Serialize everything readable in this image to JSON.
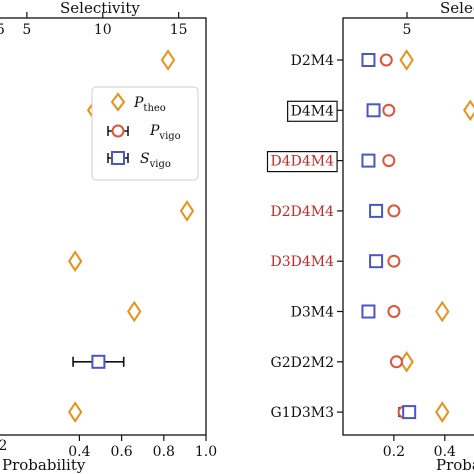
{
  "chart_data": [
    {
      "type": "scatter",
      "xlabel": "Probability",
      "x2label": "Selectivity",
      "x_ticks": [
        "0.4",
        "0.6",
        "0.8",
        "1.0"
      ],
      "x2_ticks": [
        "5",
        "10",
        "15"
      ],
      "xlim": [
        0.0,
        1.0
      ],
      "x2lim": [
        2.9,
        16.8
      ],
      "categories": [
        "",
        "",
        "",
        "",
        "",
        "",
        "",
        ""
      ],
      "legend": [
        {
          "label": "P",
          "sub": "theo"
        },
        {
          "label": "P",
          "sub": "vigo"
        },
        {
          "label": "S",
          "sub": "vigo"
        }
      ],
      "series": [
        {
          "name": "P_theo",
          "marker": "diamond",
          "color": "#e8911a",
          "x": [
            0.82,
            0.47,
            null,
            0.91,
            0.38,
            0.66,
            null,
            0.38
          ]
        },
        {
          "name": "S_vigo",
          "marker": "square",
          "color": "#4a55c8",
          "x": [
            null,
            null,
            null,
            null,
            null,
            null,
            0.49,
            null
          ],
          "xerr": [
            null,
            null,
            null,
            null,
            null,
            null,
            0.12,
            null
          ]
        }
      ]
    },
    {
      "type": "scatter",
      "xlabel": "Probability",
      "x2label": "Selectivity",
      "x_ticks": [
        "0.2",
        "0.4"
      ],
      "x2_ticks": [
        "5"
      ],
      "xlim": [
        0.0,
        0.55
      ],
      "categories": [
        "D2M4",
        "D4M4",
        "D4D4M4",
        "D2D4M4",
        "D3D4M4",
        "D3M4",
        "G2D2M2",
        "G1D3M3"
      ],
      "category_colors": [
        "#111111",
        "#111111",
        "#c62828",
        "#c62828",
        "#c62828",
        "#111111",
        "#111111",
        "#111111"
      ],
      "boxed_categories": [
        "D4M4",
        "D4D4M4"
      ],
      "series": [
        {
          "name": "P_theo",
          "marker": "diamond",
          "color": "#e8911a",
          "x": [
            0.25,
            0.5,
            null,
            null,
            null,
            0.39,
            0.25,
            0.39
          ]
        },
        {
          "name": "P_vigo",
          "marker": "circle",
          "color": "#e0533a",
          "x": [
            0.17,
            0.18,
            0.18,
            0.2,
            0.2,
            0.2,
            0.21,
            0.24
          ],
          "xerr": [
            0.01,
            0.01,
            0.005,
            0.01,
            0.01,
            0.01,
            0.005,
            0.02
          ]
        },
        {
          "name": "S_vigo",
          "marker": "square",
          "color": "#4a55c8",
          "x": [
            0.1,
            0.12,
            0.1,
            0.13,
            0.13,
            0.1,
            null,
            0.26
          ],
          "xerr": [
            0.01,
            0.01,
            0.005,
            0.015,
            0.015,
            0.01,
            null,
            0.02
          ]
        }
      ]
    }
  ]
}
